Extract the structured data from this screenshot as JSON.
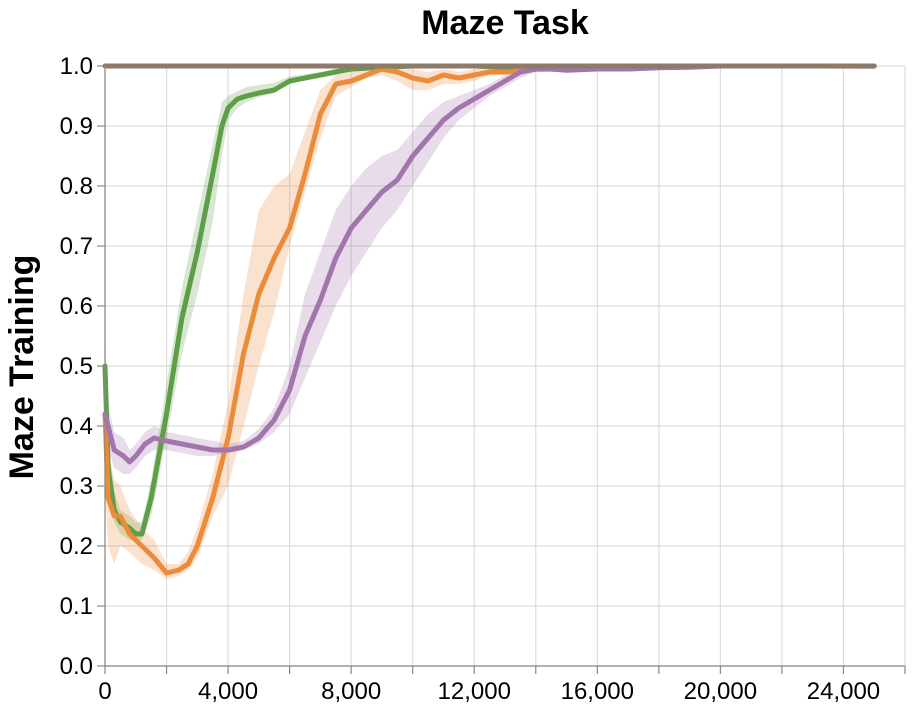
{
  "chart_data": {
    "type": "line",
    "title": "Maze Task",
    "xlabel": "",
    "ylabel": "Maze Training",
    "xlim": [
      0,
      26000
    ],
    "ylim": [
      0,
      1.0
    ],
    "x_ticks": [
      0,
      4000,
      8000,
      12000,
      16000,
      20000,
      24000
    ],
    "x_tick_labels": [
      "0",
      "4,000",
      "8,000",
      "12,000",
      "16,000",
      "20,000",
      "24,000"
    ],
    "y_ticks": [
      0,
      0.1,
      0.2,
      0.3,
      0.4,
      0.5,
      0.6,
      0.7,
      0.8,
      0.9,
      1.0
    ],
    "y_tick_labels": [
      "0.0",
      "0.1",
      "0.2",
      "0.3",
      "0.4",
      "0.5",
      "0.6",
      "0.7",
      "0.8",
      "0.9",
      "1.0"
    ],
    "grid": true,
    "legend": "none",
    "series": [
      {
        "color": "#8c7a6b",
        "x": [
          0,
          5000,
          10000,
          15000,
          20000,
          25000
        ],
        "y": [
          1.0,
          1.0,
          1.0,
          1.0,
          1.0,
          1.0
        ],
        "lower": [
          0.998,
          0.998,
          0.998,
          0.998,
          0.998,
          0.995
        ],
        "upper": [
          1.0,
          1.0,
          1.0,
          1.0,
          1.0,
          1.0
        ]
      },
      {
        "color": "#5e9e48",
        "x": [
          0,
          100,
          300,
          500,
          800,
          1000,
          1200,
          1500,
          2000,
          2500,
          3000,
          3500,
          3800,
          4000,
          4300,
          4600,
          5000,
          5500,
          6000,
          6500,
          7000,
          7500,
          8000,
          9000,
          10000,
          11000,
          12000,
          13000,
          14000,
          16000,
          20000,
          25000
        ],
        "y": [
          0.5,
          0.33,
          0.26,
          0.24,
          0.23,
          0.22,
          0.22,
          0.28,
          0.42,
          0.58,
          0.69,
          0.82,
          0.9,
          0.93,
          0.945,
          0.95,
          0.955,
          0.96,
          0.975,
          0.98,
          0.985,
          0.99,
          0.995,
          0.998,
          1.0,
          1.0,
          1.0,
          0.998,
          1.0,
          1.0,
          1.0,
          1.0
        ],
        "lower": [
          0.4,
          0.28,
          0.24,
          0.22,
          0.21,
          0.21,
          0.21,
          0.25,
          0.38,
          0.52,
          0.62,
          0.74,
          0.85,
          0.91,
          0.93,
          0.94,
          0.948,
          0.955,
          0.97,
          0.977,
          0.982,
          0.988,
          0.99,
          0.995,
          0.998,
          0.998,
          0.998,
          0.996,
          0.998,
          0.998,
          0.998,
          0.998
        ],
        "upper": [
          0.58,
          0.38,
          0.29,
          0.26,
          0.25,
          0.24,
          0.24,
          0.31,
          0.47,
          0.63,
          0.75,
          0.87,
          0.94,
          0.95,
          0.958,
          0.965,
          0.968,
          0.972,
          0.983,
          0.986,
          0.99,
          0.996,
          1.0,
          1.0,
          1.0,
          1.0,
          1.0,
          1.0,
          1.0,
          1.0,
          1.0,
          1.0
        ]
      },
      {
        "color": "#ea8c3a",
        "x": [
          0,
          100,
          300,
          500,
          800,
          1200,
          1600,
          2000,
          2400,
          2700,
          3000,
          3500,
          4000,
          4500,
          5000,
          5500,
          6000,
          6500,
          7000,
          7500,
          8000,
          8500,
          9000,
          9500,
          10000,
          10500,
          11000,
          11500,
          12000,
          12500,
          13000,
          14000,
          16000,
          20000,
          25000
        ],
        "y": [
          0.42,
          0.28,
          0.25,
          0.25,
          0.22,
          0.2,
          0.18,
          0.155,
          0.16,
          0.17,
          0.2,
          0.28,
          0.38,
          0.52,
          0.62,
          0.68,
          0.73,
          0.82,
          0.92,
          0.97,
          0.975,
          0.985,
          0.995,
          0.99,
          0.98,
          0.975,
          0.985,
          0.98,
          0.985,
          0.99,
          0.99,
          0.995,
          1.0,
          1.0,
          1.0
        ],
        "lower": [
          0.3,
          0.2,
          0.17,
          0.2,
          0.19,
          0.17,
          0.16,
          0.145,
          0.15,
          0.16,
          0.18,
          0.25,
          0.3,
          0.4,
          0.5,
          0.59,
          0.7,
          0.79,
          0.88,
          0.95,
          0.965,
          0.98,
          0.985,
          0.975,
          0.96,
          0.96,
          0.97,
          0.97,
          0.975,
          0.985,
          0.985,
          0.99,
          0.997,
          0.997,
          0.995
        ],
        "upper": [
          0.55,
          0.36,
          0.31,
          0.3,
          0.26,
          0.23,
          0.21,
          0.17,
          0.17,
          0.19,
          0.23,
          0.32,
          0.44,
          0.62,
          0.76,
          0.8,
          0.82,
          0.89,
          0.96,
          0.985,
          0.99,
          0.995,
          1.0,
          1.0,
          0.995,
          0.99,
          0.995,
          0.99,
          0.995,
          0.997,
          0.997,
          1.0,
          1.0,
          1.0,
          1.0
        ]
      },
      {
        "color": "#a275ac",
        "x": [
          0,
          300,
          600,
          800,
          1000,
          1300,
          1600,
          2000,
          2500,
          3000,
          3500,
          4000,
          4500,
          5000,
          5500,
          6000,
          6500,
          7000,
          7500,
          8000,
          8500,
          9000,
          9500,
          10000,
          10500,
          11000,
          11500,
          12000,
          12500,
          13000,
          13500,
          14000,
          14500,
          15000,
          16000,
          17000,
          18000,
          19000,
          20000,
          22000,
          25000
        ],
        "y": [
          0.42,
          0.36,
          0.35,
          0.34,
          0.35,
          0.37,
          0.38,
          0.375,
          0.37,
          0.365,
          0.36,
          0.36,
          0.365,
          0.38,
          0.41,
          0.46,
          0.55,
          0.61,
          0.68,
          0.73,
          0.76,
          0.79,
          0.81,
          0.85,
          0.88,
          0.91,
          0.93,
          0.945,
          0.96,
          0.975,
          0.99,
          0.995,
          0.995,
          0.993,
          0.995,
          0.995,
          0.997,
          0.998,
          1.0,
          1.0,
          1.0
        ],
        "lower": [
          0.38,
          0.33,
          0.32,
          0.32,
          0.33,
          0.35,
          0.36,
          0.36,
          0.355,
          0.35,
          0.35,
          0.355,
          0.36,
          0.37,
          0.39,
          0.42,
          0.48,
          0.54,
          0.6,
          0.65,
          0.69,
          0.73,
          0.76,
          0.8,
          0.84,
          0.88,
          0.91,
          0.93,
          0.95,
          0.965,
          0.98,
          0.99,
          0.99,
          0.99,
          0.992,
          0.993,
          0.995,
          0.996,
          0.998,
          0.998,
          0.998
        ],
        "upper": [
          0.46,
          0.39,
          0.38,
          0.36,
          0.37,
          0.39,
          0.4,
          0.39,
          0.385,
          0.38,
          0.375,
          0.37,
          0.375,
          0.395,
          0.43,
          0.5,
          0.62,
          0.69,
          0.76,
          0.8,
          0.83,
          0.85,
          0.86,
          0.89,
          0.92,
          0.94,
          0.95,
          0.96,
          0.97,
          0.985,
          0.997,
          1.0,
          1.0,
          0.997,
          0.998,
          0.998,
          0.999,
          1.0,
          1.0,
          1.0,
          1.0
        ]
      }
    ]
  }
}
